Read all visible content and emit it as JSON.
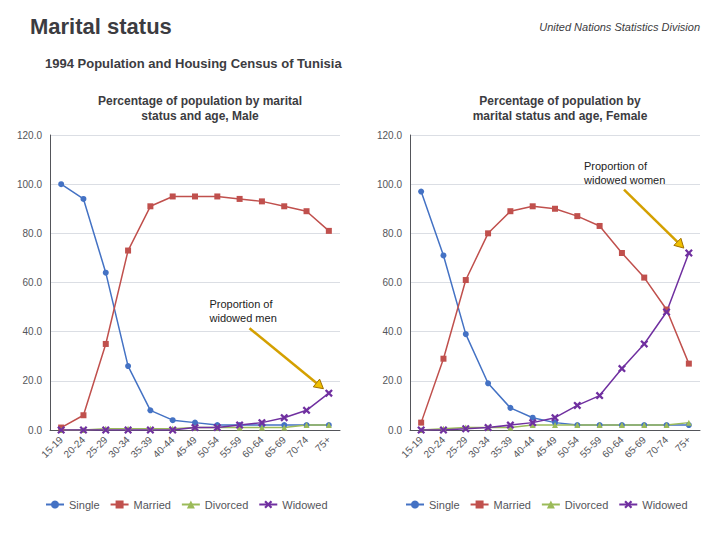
{
  "title": "Marital status",
  "subtitle": "1994 Population and Housing Census of Tunisia",
  "annotations": [
    "United Nations Statistics Division"
  ],
  "chart_data": [
    {
      "type": "line",
      "title": "Percentage of population by marital\nstatus and age, Male",
      "categories": [
        "15-19",
        "20-24",
        "25-29",
        "30-34",
        "35-39",
        "40-44",
        "45-49",
        "50-54",
        "55-59",
        "60-64",
        "65-69",
        "70-74",
        "75+"
      ],
      "series": [
        {
          "name": "Single",
          "color": "#4472c4",
          "marker": "circle",
          "values": [
            100,
            94,
            64,
            26,
            8,
            4,
            3,
            2,
            2,
            2,
            2,
            2,
            2
          ]
        },
        {
          "name": "Married",
          "color": "#c0504d",
          "marker": "square",
          "values": [
            1,
            6,
            35,
            73,
            91,
            95,
            95,
            95,
            94,
            93,
            91,
            89,
            81
          ]
        },
        {
          "name": "Divorced",
          "color": "#9bbb59",
          "marker": "triangle",
          "values": [
            0,
            0,
            0.5,
            0.5,
            0.5,
            0.5,
            1,
            1,
            1,
            1,
            1,
            2,
            2
          ]
        },
        {
          "name": "Widowed",
          "color": "#7030a0",
          "marker": "x",
          "values": [
            0,
            0,
            0,
            0,
            0,
            0,
            1,
            1,
            2,
            3,
            5,
            8,
            15
          ]
        }
      ],
      "ylim": [
        0,
        120
      ],
      "yticks": [
        {
          "value": 0,
          "label": "0.0"
        },
        {
          "value": 20,
          "label": "20.0"
        },
        {
          "value": 40,
          "label": "40.0"
        },
        {
          "value": 60,
          "label": "60.0"
        },
        {
          "value": 80,
          "label": "80.0"
        },
        {
          "value": 100,
          "label": "100.0"
        },
        {
          "value": 120,
          "label": "120.0"
        }
      ],
      "grid": true,
      "legend": "bottom",
      "annotations": [
        "Proportion of\nwidowed men"
      ]
    },
    {
      "type": "line",
      "title": "Percentage of population by\nmarital status and age, Female",
      "categories": [
        "15-19",
        "20-24",
        "25-29",
        "30-34",
        "35-39",
        "40-44",
        "45-49",
        "50-54",
        "55-59",
        "60-64",
        "65-69",
        "70-74",
        "75+"
      ],
      "series": [
        {
          "name": "Single",
          "color": "#4472c4",
          "marker": "circle",
          "values": [
            97,
            71,
            39,
            19,
            9,
            5,
            3,
            2,
            2,
            2,
            2,
            2,
            2
          ]
        },
        {
          "name": "Married",
          "color": "#c0504d",
          "marker": "square",
          "values": [
            3,
            29,
            61,
            80,
            89,
            91,
            90,
            87,
            83,
            72,
            62,
            49,
            27
          ]
        },
        {
          "name": "Divorced",
          "color": "#9bbb59",
          "marker": "triangle",
          "values": [
            0,
            0.5,
            1,
            1,
            1,
            2,
            2,
            2,
            2,
            2,
            2,
            2,
            3
          ]
        },
        {
          "name": "Widowed",
          "color": "#7030a0",
          "marker": "x",
          "values": [
            0,
            0,
            0.5,
            1,
            2,
            3,
            5,
            10,
            14,
            25,
            35,
            48,
            72
          ]
        }
      ],
      "ylim": [
        0,
        120
      ],
      "yticks": [
        {
          "value": 0,
          "label": "0.0"
        },
        {
          "value": 20,
          "label": "20.0"
        },
        {
          "value": 40,
          "label": "40.0"
        },
        {
          "value": 60,
          "label": "60.0"
        },
        {
          "value": 80,
          "label": "80.0"
        },
        {
          "value": 100,
          "label": "100.0"
        },
        {
          "value": 120,
          "label": "120.0"
        }
      ],
      "grid": true,
      "legend": "bottom",
      "annotations": [
        "Proportion of\nwidowed women"
      ]
    }
  ]
}
